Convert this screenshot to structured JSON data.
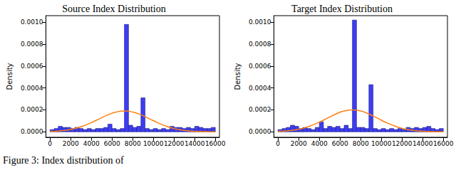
{
  "chart_data": [
    {
      "type": "histogram",
      "title": "Source Index Distribution",
      "y_label": "Density",
      "color": "#3d3df2",
      "grid": false,
      "bins": [
        0,
        400,
        800,
        1200,
        1600,
        2000,
        2400,
        2800,
        3200,
        3600,
        4000,
        4400,
        4800,
        5200,
        5600,
        6000,
        6400,
        6800,
        7200,
        7600,
        8000,
        8400,
        8800,
        9200,
        9600,
        10000,
        10400,
        10800,
        11200,
        11600,
        12000,
        12400,
        12800,
        13200,
        13600,
        14000,
        14400,
        14800,
        15200,
        15600,
        16000
      ],
      "values": [
        2e-05,
        3e-05,
        5e-05,
        4e-05,
        4e-05,
        3e-05,
        4e-05,
        3e-05,
        2e-05,
        3e-05,
        2e-05,
        3e-05,
        3e-05,
        4e-05,
        7e-05,
        3e-05,
        2e-05,
        3e-05,
        0.00098,
        6e-05,
        4e-05,
        5e-05,
        0.00031,
        3e-05,
        2e-05,
        3e-05,
        2e-05,
        3e-05,
        2e-05,
        5e-05,
        4e-05,
        4e-05,
        3e-05,
        4e-05,
        3e-05,
        5e-05,
        4e-05,
        3e-05,
        3e-05,
        4e-05
      ],
      "curve": {
        "type": "line",
        "color": "#ff7f0e",
        "x": [
          0,
          800,
          1600,
          2400,
          3200,
          4000,
          4800,
          5600,
          6400,
          7200,
          8000,
          8800,
          9600,
          10400,
          11200,
          12000,
          12800,
          13600,
          14400,
          15200,
          16000
        ],
        "values": [
          3e-06,
          7e-06,
          1.5e-05,
          3e-05,
          5.3e-05,
          8.4e-05,
          0.00012,
          0.000155,
          0.00018,
          0.00019,
          0.00018,
          0.000155,
          0.00012,
          8.4e-05,
          5.3e-05,
          3e-05,
          1.5e-05,
          7e-06,
          3e-06,
          1e-06,
          4e-07
        ]
      },
      "xlim": [
        -400,
        16400
      ],
      "xticks": [
        0,
        2000,
        4000,
        6000,
        8000,
        10000,
        12000,
        14000,
        16000
      ],
      "ylim": [
        -5e-05,
        0.00106
      ],
      "yticks": [
        {
          "value": 0,
          "label": "0.0000"
        },
        {
          "value": 0.0002,
          "label": "0.0002"
        },
        {
          "value": 0.0004,
          "label": "0.0004"
        },
        {
          "value": 0.0006,
          "label": "0.0006"
        },
        {
          "value": 0.0008,
          "label": "0.0008"
        },
        {
          "value": 0.001,
          "label": "0.0010"
        }
      ]
    },
    {
      "type": "histogram",
      "title": "Target Index Distribution",
      "y_label": "Density",
      "color": "#3d3df2",
      "grid": false,
      "bins": [
        0,
        400,
        800,
        1200,
        1600,
        2000,
        2400,
        2800,
        3200,
        3600,
        4000,
        4400,
        4800,
        5200,
        5600,
        6000,
        6400,
        6800,
        7200,
        7600,
        8000,
        8400,
        8800,
        9200,
        9600,
        10000,
        10400,
        10800,
        11200,
        11600,
        12000,
        12400,
        12800,
        13200,
        13600,
        14000,
        14400,
        14800,
        15200,
        15600,
        16000
      ],
      "values": [
        2e-05,
        3e-05,
        4e-05,
        6e-05,
        5e-05,
        3e-05,
        4e-05,
        3e-05,
        2e-05,
        4e-05,
        9e-05,
        3e-05,
        5e-05,
        4e-05,
        5e-05,
        3e-05,
        6e-05,
        3e-05,
        0.00102,
        4e-05,
        4e-05,
        3e-05,
        0.00043,
        3e-05,
        2e-05,
        3e-05,
        2e-05,
        3e-05,
        2e-05,
        3e-05,
        2e-05,
        4e-05,
        3e-05,
        4e-05,
        3e-05,
        4e-05,
        5e-05,
        3e-05,
        2e-05,
        3e-05
      ],
      "curve": {
        "type": "line",
        "color": "#ff7f0e",
        "x": [
          0,
          800,
          1600,
          2400,
          3200,
          4000,
          4800,
          5600,
          6400,
          7200,
          8000,
          8800,
          9600,
          10400,
          11200,
          12000,
          12800,
          13600,
          14400,
          15200,
          16000
        ],
        "values": [
          3e-06,
          8e-06,
          1.6e-05,
          3.2e-05,
          5.6e-05,
          8.8e-05,
          0.000126,
          0.000163,
          0.00019,
          0.0002,
          0.00019,
          0.000163,
          0.000126,
          8.8e-05,
          5.6e-05,
          3.2e-05,
          1.6e-05,
          8e-06,
          3e-06,
          1e-06,
          4e-07
        ]
      },
      "xlim": [
        -400,
        16400
      ],
      "xticks": [
        0,
        2000,
        4000,
        6000,
        8000,
        10000,
        12000,
        14000,
        16000
      ],
      "ylim": [
        -5e-05,
        0.00106
      ],
      "yticks": [
        {
          "value": 0,
          "label": "0.0000"
        },
        {
          "value": 0.0002,
          "label": "0.0002"
        },
        {
          "value": 0.0004,
          "label": "0.0004"
        },
        {
          "value": 0.0006,
          "label": "0.0006"
        },
        {
          "value": 0.0008,
          "label": "0.0008"
        },
        {
          "value": 0.001,
          "label": "0.0010"
        }
      ]
    }
  ],
  "caption": "Figure 3: Index distribution of"
}
